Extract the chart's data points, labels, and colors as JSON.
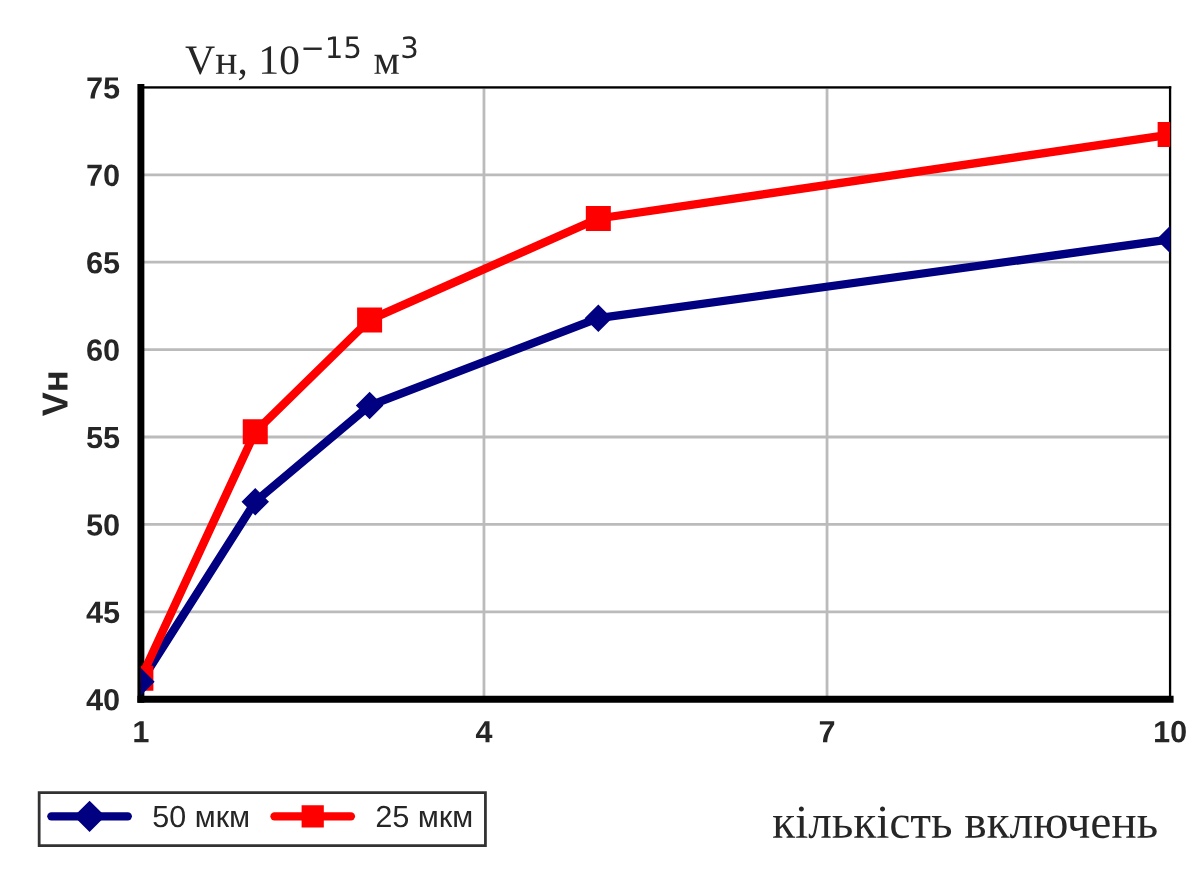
{
  "chart_data": {
    "type": "line",
    "ylabel": "Vн",
    "xlabel": "кількість включень",
    "annotations": [
      "Vн, 10$^{−15}$ м$^{3}$"
    ],
    "x": [
      1,
      2,
      3,
      5,
      10
    ],
    "series": [
      {
        "name": "50 мкм",
        "color": "#000080",
        "marker": "diamond",
        "values": [
          41.0,
          51.3,
          56.8,
          61.8,
          66.3
        ]
      },
      {
        "name": "25 мкм",
        "color": "#ff0000",
        "marker": "square",
        "values": [
          41.2,
          55.3,
          61.7,
          67.5,
          72.3
        ]
      }
    ],
    "xlim": [
      1,
      10
    ],
    "xticks": [
      1,
      4,
      7,
      10
    ],
    "ylim": [
      40,
      75
    ],
    "yticks": [
      40,
      45,
      50,
      55,
      60,
      65,
      70,
      75
    ],
    "grid": true,
    "legend": "bottom left",
    "line_style": "solid"
  }
}
